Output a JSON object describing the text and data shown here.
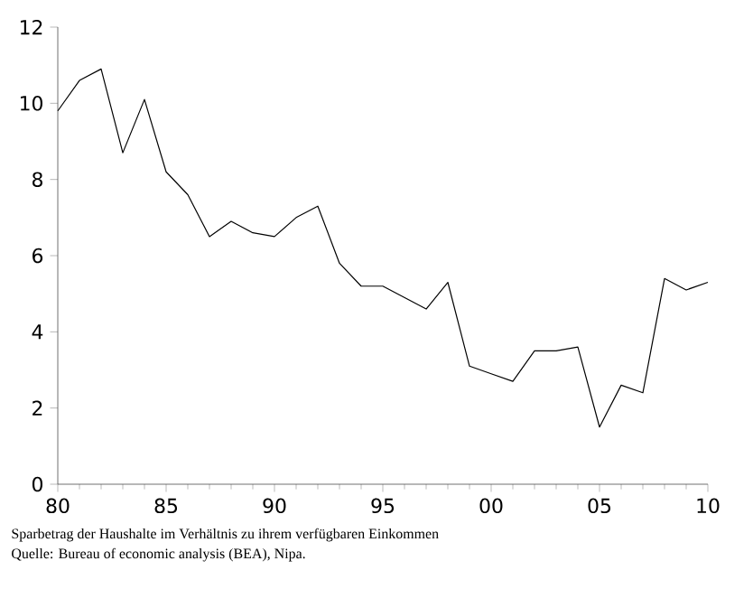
{
  "chart_data": {
    "type": "line",
    "x": [
      1980,
      1981,
      1982,
      1983,
      1984,
      1985,
      1986,
      1987,
      1988,
      1989,
      1990,
      1991,
      1992,
      1993,
      1994,
      1995,
      1996,
      1997,
      1998,
      1999,
      2000,
      2001,
      2002,
      2003,
      2004,
      2005,
      2006,
      2007,
      2008,
      2009,
      2010
    ],
    "series": [
      {
        "color": "#000000",
        "values": [
          9.8,
          10.6,
          10.9,
          8.7,
          10.1,
          8.2,
          7.6,
          6.5,
          6.9,
          6.6,
          6.5,
          7.0,
          7.3,
          5.8,
          5.2,
          5.2,
          4.9,
          4.6,
          5.3,
          3.1,
          2.9,
          2.7,
          3.5,
          3.5,
          3.6,
          1.5,
          2.6,
          2.4,
          5.4,
          5.1,
          5.3
        ]
      }
    ],
    "xlim": [
      1980,
      2010
    ],
    "xticks": [
      {
        "value": 1980,
        "label": "80"
      },
      {
        "value": 1985,
        "label": "85"
      },
      {
        "value": 1990,
        "label": "90"
      },
      {
        "value": 1995,
        "label": "95"
      },
      {
        "value": 2000,
        "label": "00"
      },
      {
        "value": 2005,
        "label": "05"
      },
      {
        "value": 2010,
        "label": "10"
      }
    ],
    "ylim": [
      0,
      12
    ],
    "yticks": [
      0,
      2,
      4,
      6,
      8,
      10,
      12
    ],
    "annotations": [
      "Sparbetrag der Haushalte im Verhältnis zu ihrem verfügbaren Einkommen",
      "Quelle: Bureau of economic analysis (BEA), Nipa."
    ]
  }
}
